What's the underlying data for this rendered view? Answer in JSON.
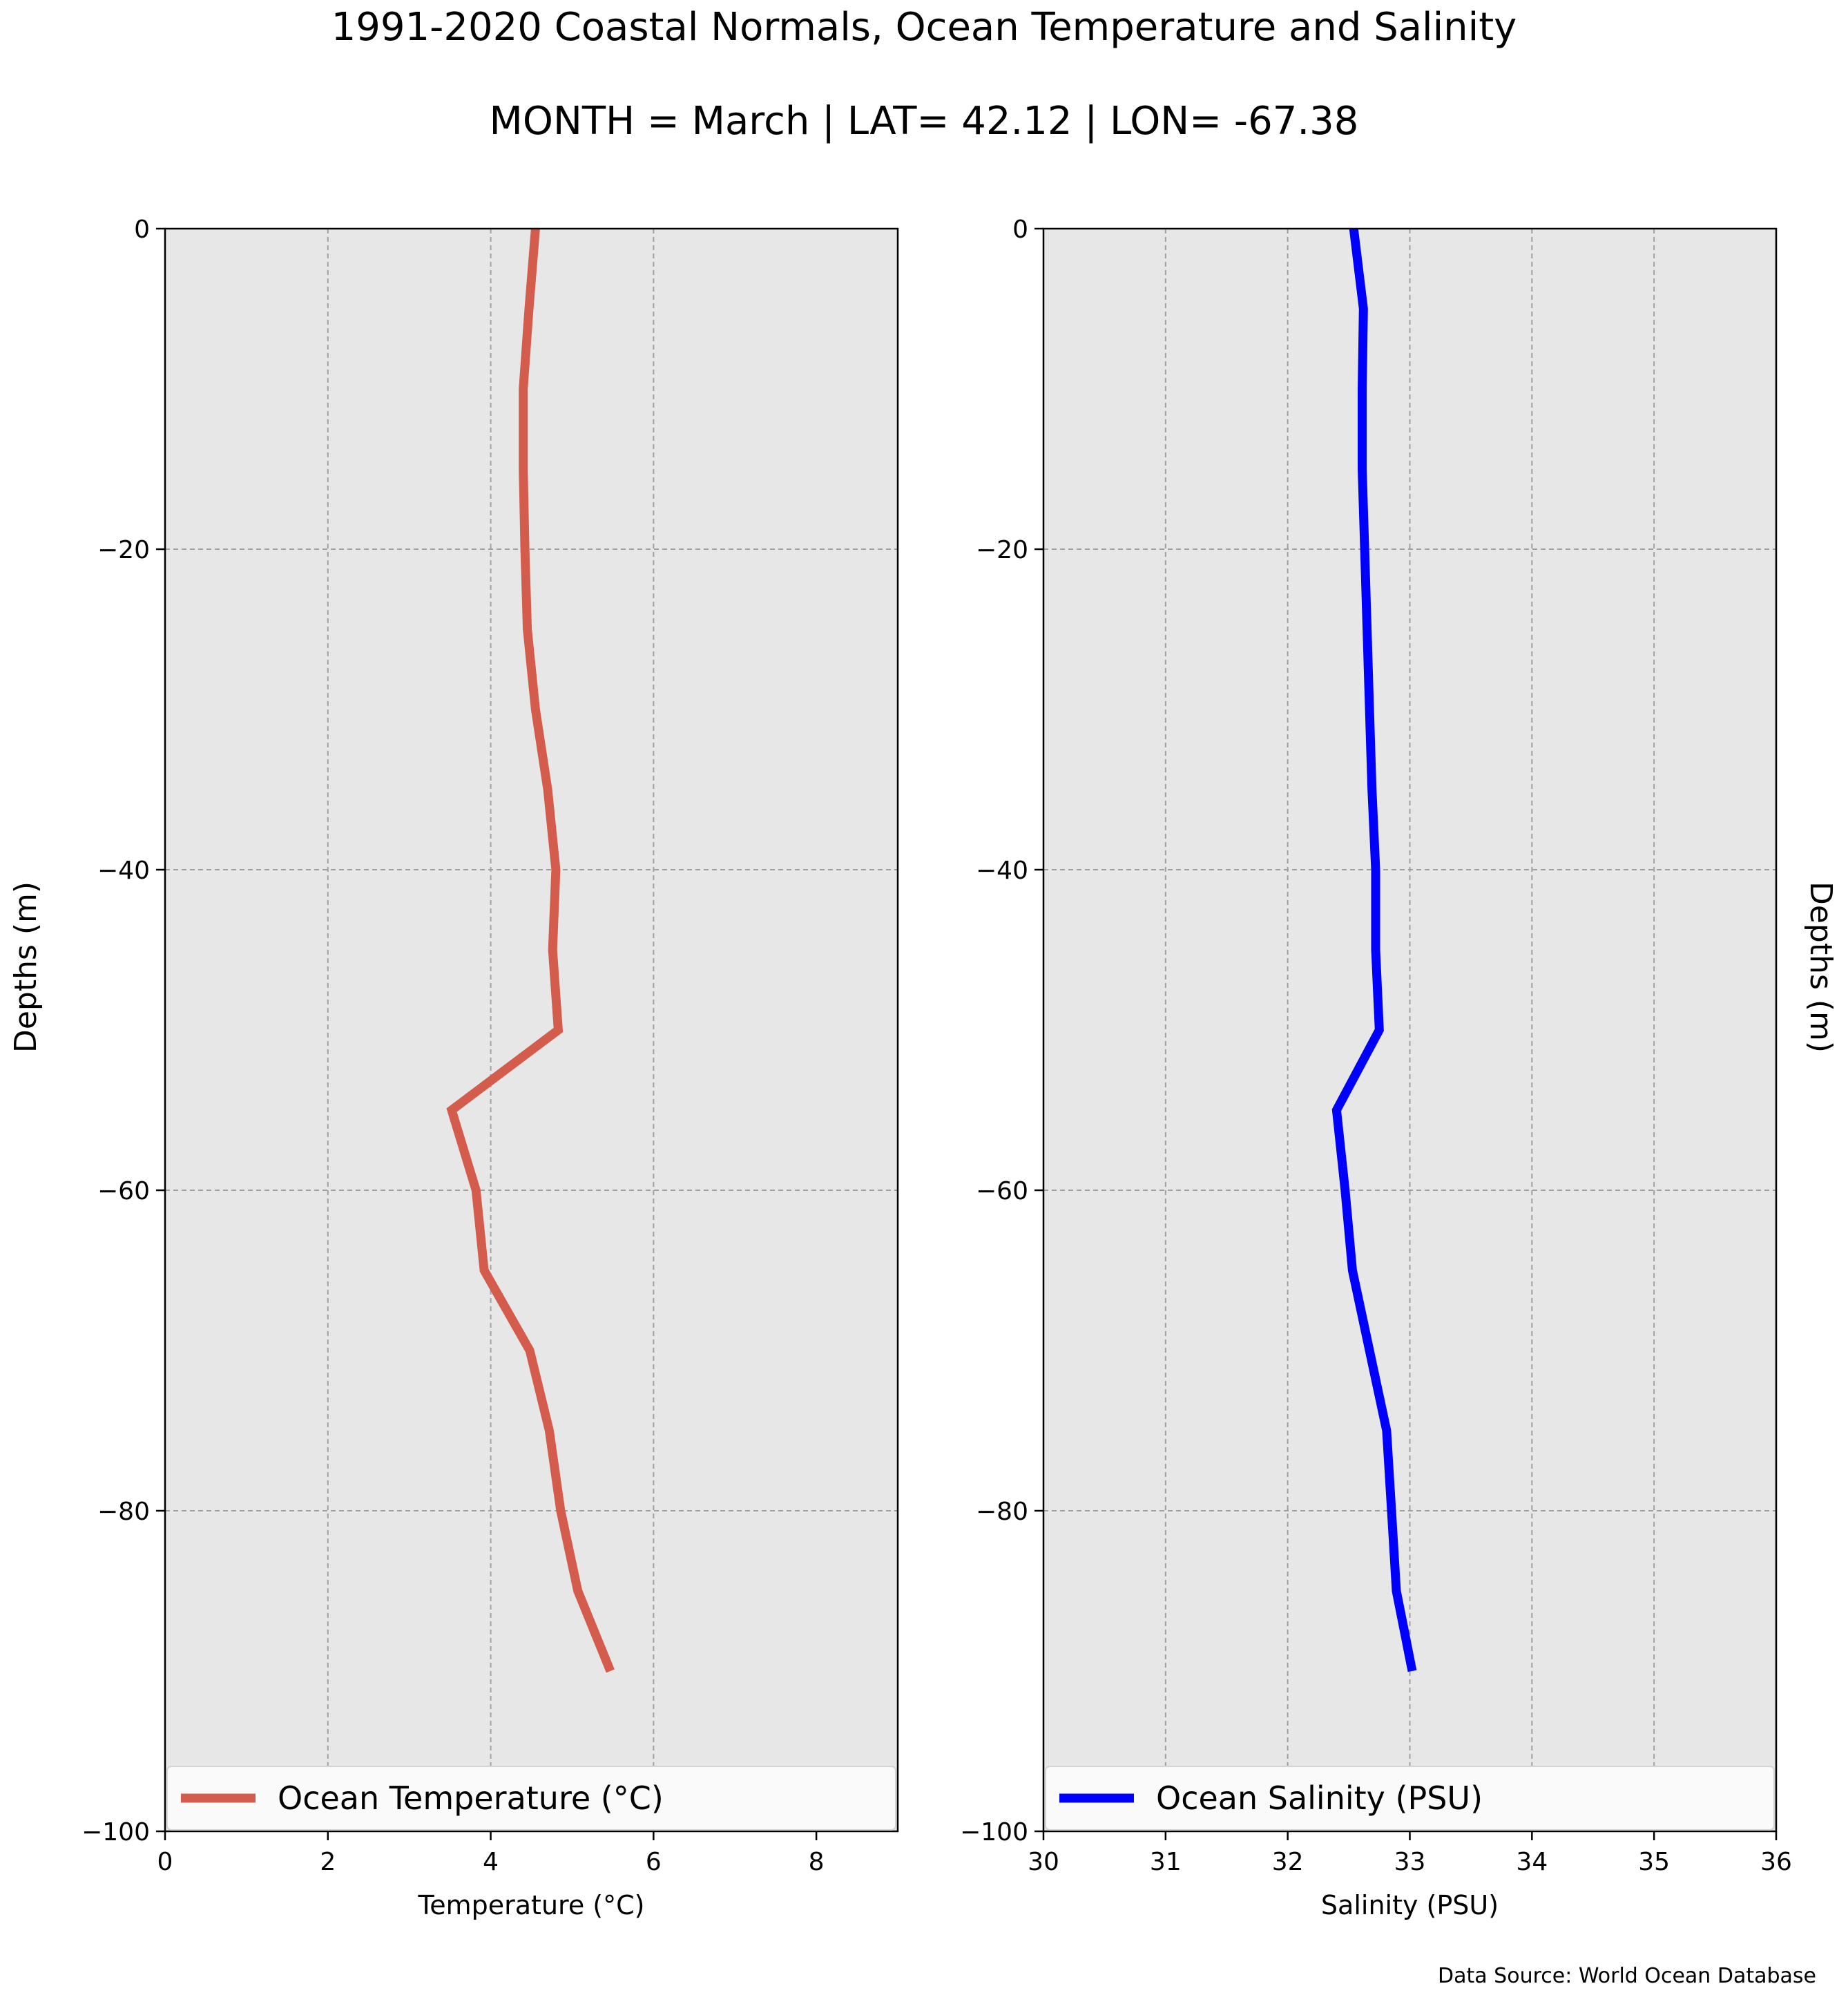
{
  "title": "1991-2020 Coastal Normals, Ocean Temperature and Salinity",
  "subtitle": "MONTH = March | LAT= 42.12 | LON= -67.38",
  "footer": {
    "source": "Data Source: World Ocean Database"
  },
  "chart_data": [
    {
      "type": "line",
      "xlabel": "Temperature (°C)",
      "ylabel": "Depths (m)",
      "xlim": [
        0,
        9
      ],
      "ylim": [
        -100,
        0
      ],
      "xticks": [
        0,
        2,
        4,
        6,
        8
      ],
      "yticks": [
        0,
        -20,
        -40,
        -60,
        -80,
        -100
      ],
      "xtick_labels": [
        "0",
        "2",
        "4",
        "6",
        "8"
      ],
      "ytick_labels": [
        "0",
        "−20",
        "−40",
        "−60",
        "−80",
        "−100"
      ],
      "grid": true,
      "legend_position": "bottom",
      "series": [
        {
          "name": "Ocean Temperature (°C)",
          "color": "#d45c4c",
          "x": [
            4.55,
            4.47,
            4.4,
            4.4,
            4.42,
            4.45,
            4.55,
            4.7,
            4.8,
            4.76,
            4.83,
            3.52,
            3.82,
            3.92,
            4.48,
            4.72,
            4.86,
            5.07,
            5.47
          ],
          "y": [
            0,
            -5,
            -10,
            -15,
            -20,
            -25,
            -30,
            -35,
            -40,
            -45,
            -50,
            -55,
            -60,
            -65,
            -70,
            -75,
            -80,
            -85,
            -90
          ]
        }
      ]
    },
    {
      "type": "line",
      "xlabel": "Salinity (PSU)",
      "ylabel": "Depths (m)",
      "xlim": [
        30,
        36
      ],
      "ylim": [
        -100,
        0
      ],
      "xticks": [
        30,
        31,
        32,
        33,
        34,
        35,
        36
      ],
      "yticks": [
        0,
        -20,
        -40,
        -60,
        -80,
        -100
      ],
      "xtick_labels": [
        "30",
        "31",
        "32",
        "33",
        "34",
        "35",
        "36"
      ],
      "ytick_labels": [
        "0",
        "−20",
        "−40",
        "−60",
        "−80",
        "−100"
      ],
      "grid": true,
      "legend_position": "bottom",
      "series": [
        {
          "name": "Ocean Salinity (PSU)",
          "color": "#0000ff",
          "x": [
            32.54,
            32.62,
            32.61,
            32.61,
            32.63,
            32.65,
            32.67,
            32.69,
            32.72,
            32.72,
            32.75,
            32.4,
            32.47,
            32.53,
            32.67,
            32.81,
            32.85,
            32.89,
            33.02
          ],
          "y": [
            0,
            -5,
            -10,
            -15,
            -20,
            -25,
            -30,
            -35,
            -40,
            -45,
            -50,
            -55,
            -60,
            -65,
            -70,
            -75,
            -80,
            -85,
            -90
          ]
        }
      ]
    }
  ]
}
